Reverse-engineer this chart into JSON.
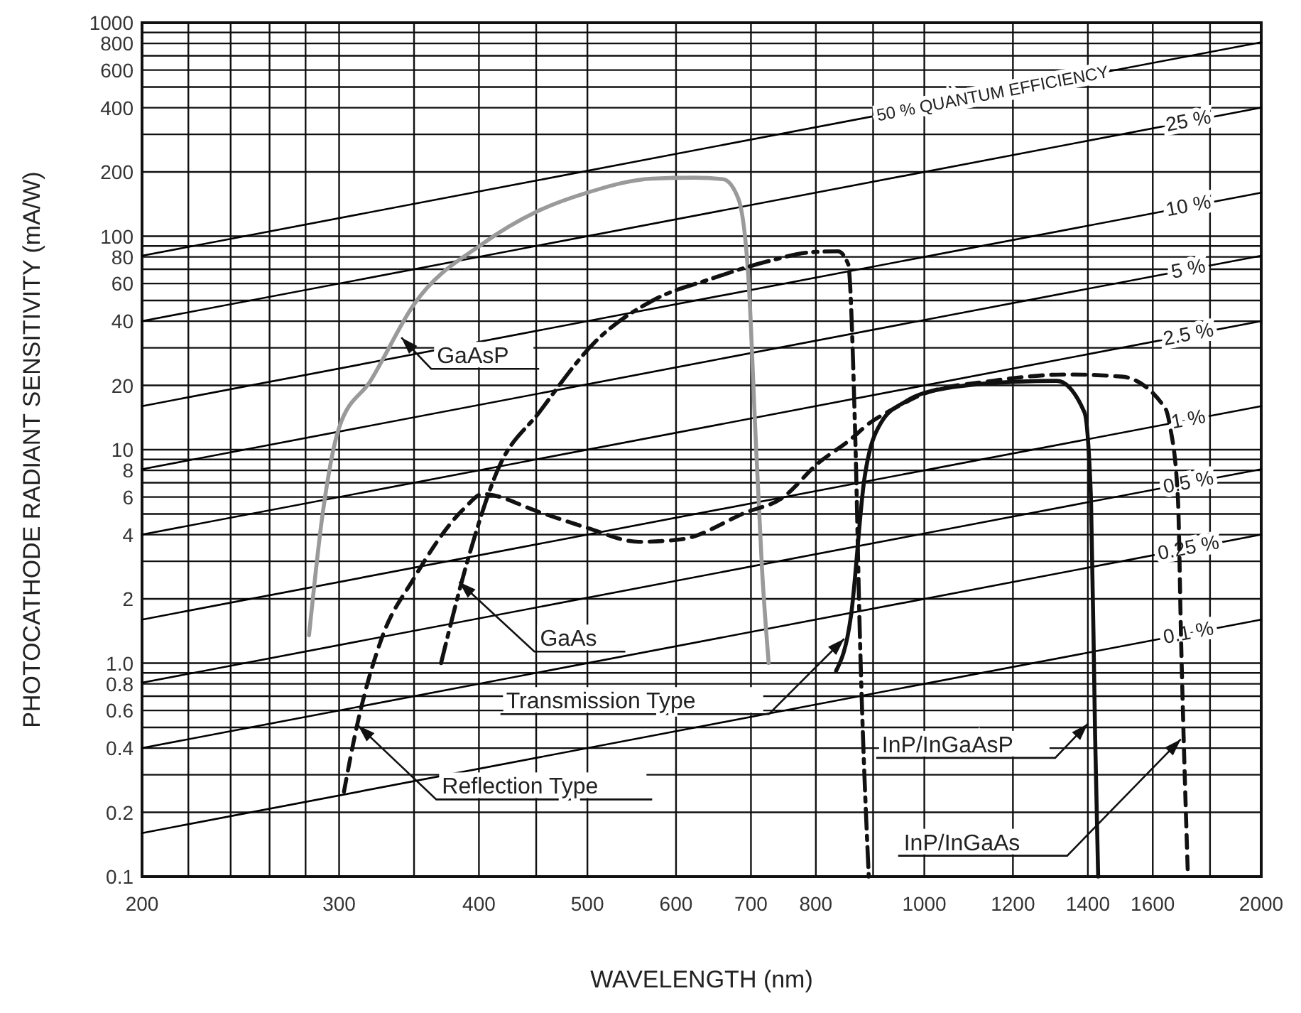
{
  "chart_data": {
    "type": "line",
    "xlabel": "WAVELENGTH (nm)",
    "ylabel": "PHOTOCATHODE RADIANT SENSITIVITY (mA/W)",
    "log": "xy",
    "grid": true,
    "xlim": [
      200,
      2000
    ],
    "ylim": [
      0.1,
      1000
    ],
    "xticks": [
      200,
      {
        "value": 220,
        "label": null
      },
      {
        "value": 240,
        "label": null
      },
      {
        "value": 260,
        "label": null
      },
      {
        "value": 280,
        "label": null
      },
      300,
      {
        "value": 350,
        "label": null
      },
      400,
      {
        "value": 450,
        "label": null
      },
      500,
      600,
      700,
      800,
      {
        "value": 900,
        "label": null
      },
      1000,
      1200,
      1400,
      1600,
      {
        "value": 1800,
        "label": null
      },
      2000
    ],
    "yticks": [
      0.1,
      0.2,
      {
        "value": 0.3,
        "label": null
      },
      0.4,
      {
        "value": 0.5,
        "label": null
      },
      0.6,
      {
        "value": 0.7,
        "label": null
      },
      0.8,
      {
        "value": 0.9,
        "label": null
      },
      {
        "value": 1,
        "label": "1.0"
      },
      2,
      {
        "value": 3,
        "label": null
      },
      4,
      {
        "value": 5,
        "label": null
      },
      6,
      {
        "value": 7,
        "label": null
      },
      8,
      {
        "value": 9,
        "label": null
      },
      10,
      20,
      {
        "value": 30,
        "label": null
      },
      40,
      {
        "value": 50,
        "label": null
      },
      60,
      {
        "value": 70,
        "label": null
      },
      80,
      {
        "value": 90,
        "label": null
      },
      100,
      200,
      {
        "value": 300,
        "label": null
      },
      400,
      {
        "value": 500,
        "label": null
      },
      600,
      {
        "value": 700,
        "label": null
      },
      800,
      {
        "value": 900,
        "label": null
      },
      1000
    ],
    "series": [
      {
        "name": "50 % QUANTUM EFFICIENCY",
        "color": "#000000",
        "x": [
          200,
          2000
        ],
        "values": [
          81,
          810
        ]
      },
      {
        "name": "25 %",
        "color": "#000000",
        "x": [
          200,
          2000
        ],
        "values": [
          40,
          400
        ]
      },
      {
        "name": "10 %",
        "color": "#000000",
        "x": [
          200,
          2000
        ],
        "values": [
          16,
          160
        ]
      },
      {
        "name": "5 %",
        "color": "#000000",
        "x": [
          200,
          2000
        ],
        "values": [
          8.1,
          81
        ]
      },
      {
        "name": "2.5 %",
        "color": "#000000",
        "x": [
          200,
          2000
        ],
        "values": [
          4,
          40
        ]
      },
      {
        "name": "1 %",
        "color": "#000000",
        "x": [
          200,
          2000
        ],
        "values": [
          1.6,
          16
        ]
      },
      {
        "name": "0.5 %",
        "color": "#000000",
        "x": [
          200,
          2000
        ],
        "values": [
          0.81,
          8.1
        ]
      },
      {
        "name": "0.25 %",
        "color": "#000000",
        "x": [
          200,
          2000
        ],
        "values": [
          0.4,
          4
        ]
      },
      {
        "name": "0.1 %",
        "color": "#000000",
        "x": [
          200,
          2000
        ],
        "values": [
          0.16,
          1.6
        ]
      },
      {
        "color": "#9a9a9a",
        "line_style": "solid",
        "x": [
          282,
          290,
          300,
          320,
          350,
          404,
          450,
          500,
          571,
          624,
          661,
          682,
          697,
          706,
          716,
          726
        ],
        "values": [
          1.35,
          5,
          12.7,
          21,
          48,
          93,
          130,
          160,
          186,
          188,
          185,
          150,
          59,
          13,
          2.8,
          1.0
        ]
      },
      {
        "color": "#111111",
        "line_style": "dashdot",
        "x": [
          370,
          392,
          416,
          453,
          508,
          572,
          644,
          723,
          790,
          837,
          855,
          867,
          876,
          892
        ],
        "values": [
          1.0,
          3.2,
          8.1,
          15,
          32,
          50,
          63,
          76,
          84,
          85,
          74,
          13,
          1.3,
          0.1
        ]
      },
      {
        "color": "#111111",
        "line_style": "dashed",
        "x": [
          303,
          311,
          327,
          350,
          388,
          403,
          453,
          500,
          556,
          606,
          694,
          745,
          805,
          856,
          895,
          940,
          1000,
          1150,
          1340,
          1500,
          1642,
          1658,
          1685,
          1696,
          1720
        ],
        "values": [
          0.25,
          0.5,
          1.28,
          2.5,
          5.3,
          6.2,
          5.1,
          4.3,
          3.7,
          3.8,
          5.1,
          5.9,
          8.7,
          11,
          13.4,
          15.6,
          18.3,
          21,
          22.5,
          22,
          15.6,
          12.8,
          5.9,
          1.28,
          0.1
        ]
      },
      {
        "color": "#111111",
        "line_style": "solid",
        "x": [
          834,
          860,
          884,
          915,
          962,
          1046,
          1209,
          1313,
          1390,
          1409,
          1421,
          1430
        ],
        "values": [
          0.92,
          1.67,
          7.3,
          13.4,
          16.8,
          19.4,
          20.8,
          21,
          15,
          5.9,
          0.46,
          0.1
        ]
      }
    ],
    "annotations": [
      {
        "text": "GaAsP",
        "x": 341,
        "y": 33.5
      },
      {
        "text": "GaAs",
        "x": 384,
        "y": 2.4
      },
      {
        "text": "Transmission Type",
        "x": 848,
        "y": 1.3
      },
      {
        "text": "Reflection Type",
        "x": 312,
        "y": 0.51
      },
      {
        "text": "InP/InGaAsP",
        "x": 1400,
        "y": 0.52
      },
      {
        "text": "InP/InGaAs",
        "x": 1695,
        "y": 0.44
      }
    ]
  }
}
